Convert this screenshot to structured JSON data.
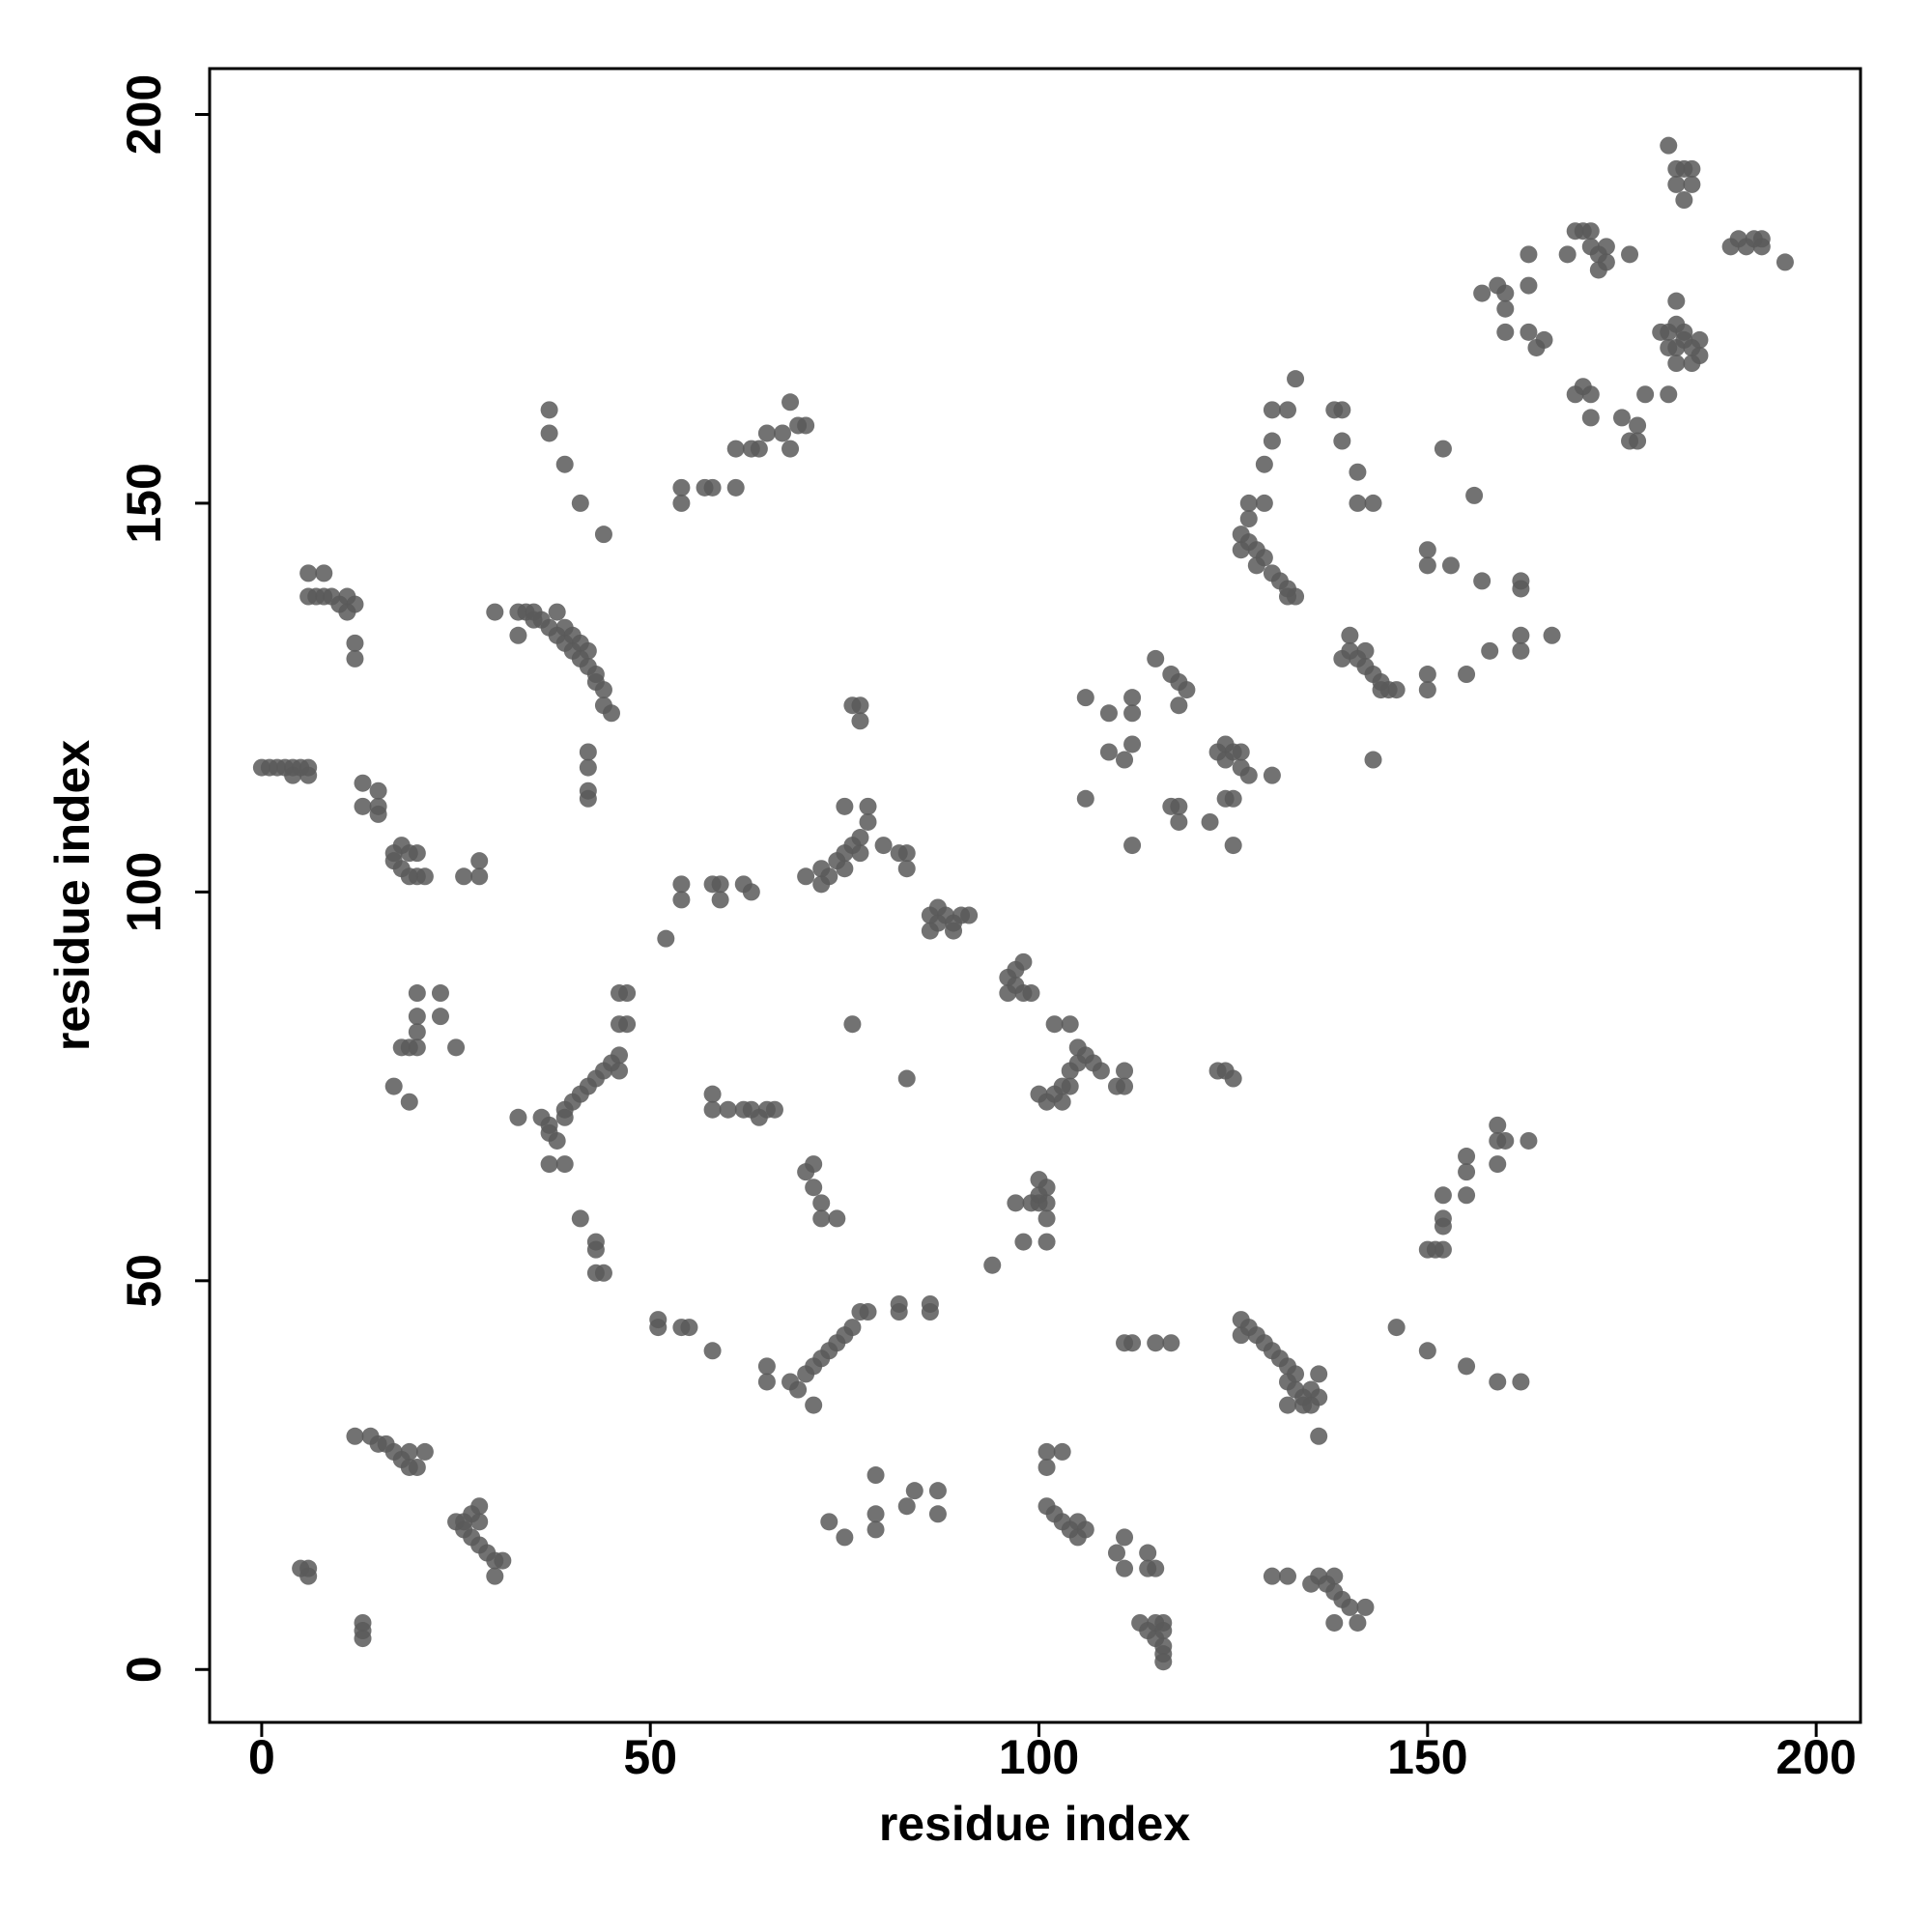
{
  "chart_data": {
    "type": "scatter",
    "x_label": "residue index",
    "y_label": "residue index",
    "color": "#595959",
    "xlim": [
      -6.7,
      205.7
    ],
    "ylim": [
      -6.8,
      205.9
    ],
    "xticks": [
      0,
      50,
      100,
      150,
      200
    ],
    "yticks": [
      0,
      50,
      100,
      150,
      200
    ],
    "x": [
      5,
      6,
      6,
      13,
      13,
      13,
      12,
      14,
      15,
      16,
      17,
      18,
      19,
      19,
      20,
      21,
      25,
      26,
      26,
      27,
      27,
      28,
      28,
      28,
      29,
      30,
      30,
      31,
      20,
      23,
      20,
      23,
      20,
      18,
      19,
      20,
      25,
      17,
      19,
      0,
      1,
      2,
      3,
      4,
      5,
      6,
      4,
      6,
      13,
      15,
      13,
      15,
      15,
      17,
      17,
      18,
      18,
      19,
      19,
      20,
      20,
      21,
      26,
      28,
      28,
      6,
      8,
      6,
      7,
      8,
      9,
      10,
      11,
      12,
      11,
      12,
      12,
      37,
      37,
      39,
      41,
      44,
      30,
      33,
      34,
      35,
      33,
      35,
      36,
      37,
      38,
      38,
      39,
      39,
      40,
      40,
      41,
      41,
      42,
      42,
      43,
      43,
      44,
      44,
      45,
      42,
      42,
      42,
      42,
      54,
      54,
      57,
      58,
      61,
      61,
      63,
      64,
      65,
      67,
      68,
      68,
      69,
      70,
      51,
      51,
      54,
      55,
      58,
      52,
      54,
      54,
      58,
      59,
      59,
      62,
      63,
      58,
      58,
      60,
      62,
      63,
      64,
      65,
      66,
      33,
      36,
      37,
      37,
      38,
      39,
      39,
      40,
      41,
      42,
      43,
      44,
      45,
      46,
      46,
      37,
      39,
      41,
      43,
      43,
      43,
      44,
      46,
      47,
      46,
      47,
      65,
      65,
      68,
      69,
      70,
      71,
      72,
      73,
      74,
      75,
      76,
      77,
      78,
      71,
      82,
      82,
      86,
      86,
      70,
      71,
      71,
      72,
      72,
      74,
      73,
      75,
      79,
      79,
      79,
      83,
      84,
      87,
      87,
      76,
      83,
      94,
      70,
      72,
      72,
      73,
      74,
      75,
      75,
      76,
      77,
      77,
      78,
      78,
      75,
      80,
      82,
      83,
      83,
      76,
      77,
      77,
      86,
      86,
      87,
      87,
      88,
      89,
      89,
      90,
      91,
      96,
      96,
      97,
      97,
      98,
      98,
      99,
      100,
      100,
      101,
      99,
      100,
      101,
      101,
      98,
      101,
      97,
      100,
      101,
      102,
      103,
      103,
      104,
      104,
      105,
      105,
      106,
      107,
      108,
      102,
      104,
      111,
      111,
      110,
      101,
      103,
      101,
      101,
      102,
      103,
      104,
      105,
      105,
      106,
      110,
      111,
      111,
      114,
      114,
      115,
      113,
      114,
      115,
      115,
      116,
      116,
      116,
      116,
      116,
      111,
      112,
      115,
      117,
      106,
      109,
      112,
      112,
      115,
      117,
      118,
      119,
      118,
      109,
      111,
      112,
      106,
      112,
      117,
      118,
      118,
      122,
      123,
      124,
      124,
      125,
      126,
      126,
      127,
      130,
      124,
      125,
      125,
      123,
      124,
      125,
      126,
      126,
      127,
      128,
      129,
      130,
      131,
      132,
      132,
      133,
      133,
      134,
      135,
      135,
      136,
      136,
      136,
      132,
      134,
      130,
      132,
      135,
      136,
      137,
      138,
      138,
      139,
      140,
      141,
      138,
      142,
      146,
      150,
      155,
      159,
      162,
      150,
      151,
      152,
      152,
      152,
      152,
      155,
      155,
      155,
      159,
      159,
      159,
      160,
      163,
      126,
      126,
      127,
      128,
      128,
      129,
      130,
      131,
      132,
      132,
      133,
      127,
      127,
      129,
      129,
      130,
      130,
      132,
      133,
      139,
      140,
      140,
      141,
      142,
      142,
      143,
      144,
      144,
      145,
      146,
      143,
      138,
      139,
      139,
      141,
      141,
      143,
      150,
      150,
      150,
      150,
      155,
      158,
      157,
      156,
      152,
      153,
      162,
      162,
      162,
      162,
      166,
      157,
      159,
      160,
      160,
      160,
      163,
      163,
      163,
      164,
      165,
      168,
      169,
      170,
      171,
      171,
      172,
      172,
      173,
      173,
      176,
      169,
      170,
      171,
      171,
      175,
      176,
      177,
      177,
      178,
      180,
      181,
      181,
      182,
      182,
      182,
      182,
      183,
      183,
      184,
      184,
      185,
      185,
      181,
      181,
      182,
      182,
      183,
      183,
      184,
      184,
      189,
      190,
      191,
      192,
      193,
      193,
      196
    ],
    "values": [
      13,
      13,
      12,
      6,
      5,
      4,
      30,
      30,
      29,
      29,
      28,
      27,
      26,
      28,
      26,
      28,
      19,
      19,
      18,
      17,
      20,
      21,
      16,
      19,
      15,
      14,
      12,
      14,
      87,
      87,
      84,
      84,
      82,
      80,
      80,
      80,
      80,
      75,
      73,
      116,
      116,
      116,
      116,
      116,
      116,
      116,
      115,
      115,
      114,
      113,
      111,
      111,
      110,
      105,
      104,
      106,
      103,
      105,
      102,
      105,
      102,
      102,
      102,
      102,
      104,
      141,
      141,
      138,
      138,
      138,
      138,
      137,
      138,
      137,
      136,
      132,
      130,
      162,
      159,
      155,
      150,
      146,
      136,
      136,
      136,
      136,
      133,
      135,
      135,
      134,
      136,
      133,
      132,
      134,
      131,
      133,
      130,
      132,
      129,
      131,
      128,
      127,
      126,
      124,
      123,
      118,
      116,
      113,
      112,
      152,
      150,
      152,
      152,
      152,
      157,
      157,
      157,
      159,
      159,
      163,
      157,
      160,
      160,
      45,
      44,
      44,
      44,
      41,
      94,
      101,
      99,
      101,
      101,
      99,
      101,
      100,
      74,
      72,
      72,
      72,
      72,
      71,
      72,
      72,
      71,
      71,
      70,
      69,
      68,
      71,
      72,
      73,
      74,
      75,
      76,
      77,
      78,
      79,
      77,
      65,
      65,
      58,
      55,
      54,
      51,
      51,
      87,
      87,
      83,
      83,
      39,
      37,
      37,
      36,
      38,
      39,
      40,
      41,
      42,
      43,
      44,
      46,
      46,
      34,
      47,
      46,
      47,
      46,
      64,
      65,
      62,
      60,
      58,
      58,
      19,
      17,
      25,
      20,
      18,
      21,
      23,
      23,
      20,
      83,
      76,
      52,
      102,
      103,
      101,
      102,
      104,
      103,
      105,
      106,
      107,
      105,
      109,
      111,
      111,
      106,
      105,
      105,
      103,
      124,
      124,
      122,
      97,
      95,
      98,
      96,
      97,
      96,
      95,
      97,
      97,
      89,
      87,
      88,
      90,
      91,
      87,
      87,
      63,
      61,
      62,
      60,
      60,
      60,
      58,
      55,
      55,
      60,
      74,
      73,
      74,
      75,
      73,
      77,
      75,
      78,
      80,
      79,
      78,
      77,
      83,
      83,
      77,
      75,
      75,
      28,
      28,
      26,
      21,
      20,
      19,
      18,
      19,
      17,
      18,
      15,
      17,
      13,
      15,
      13,
      13,
      6,
      5,
      4,
      6,
      6,
      5,
      3,
      2,
      1,
      42,
      42,
      42,
      42,
      125,
      123,
      125,
      123,
      130,
      128,
      127,
      126,
      124,
      118,
      117,
      119,
      112,
      106,
      111,
      109,
      111,
      109,
      118,
      117,
      119,
      118,
      118,
      116,
      115,
      115,
      112,
      112,
      106,
      77,
      77,
      76,
      45,
      43,
      44,
      43,
      42,
      41,
      40,
      39,
      37,
      36,
      38,
      35,
      34,
      36,
      38,
      35,
      30,
      34,
      34,
      12,
      12,
      11,
      12,
      11,
      10,
      12,
      9,
      8,
      6,
      6,
      8,
      44,
      41,
      39,
      37,
      37,
      54,
      54,
      54,
      57,
      58,
      61,
      61,
      64,
      66,
      65,
      68,
      70,
      68,
      68,
      146,
      144,
      145,
      144,
      142,
      143,
      141,
      140,
      139,
      138,
      138,
      148,
      150,
      150,
      155,
      158,
      162,
      162,
      166,
      130,
      131,
      133,
      130,
      129,
      131,
      128,
      127,
      126,
      126,
      126,
      117,
      162,
      162,
      158,
      154,
      150,
      150,
      142,
      144,
      126,
      128,
      128,
      131,
      140,
      151,
      157,
      142,
      131,
      133,
      139,
      140,
      133,
      177,
      178,
      177,
      175,
      172,
      182,
      178,
      172,
      170,
      171,
      182,
      185,
      185,
      185,
      183,
      182,
      180,
      181,
      183,
      182,
      164,
      165,
      164,
      161,
      161,
      158,
      158,
      160,
      164,
      172,
      172,
      170,
      168,
      170,
      173,
      176,
      172,
      171,
      170,
      168,
      169,
      171,
      164,
      196,
      193,
      191,
      189,
      193,
      191,
      193,
      183,
      184,
      183,
      184,
      183,
      184,
      181
    ]
  }
}
